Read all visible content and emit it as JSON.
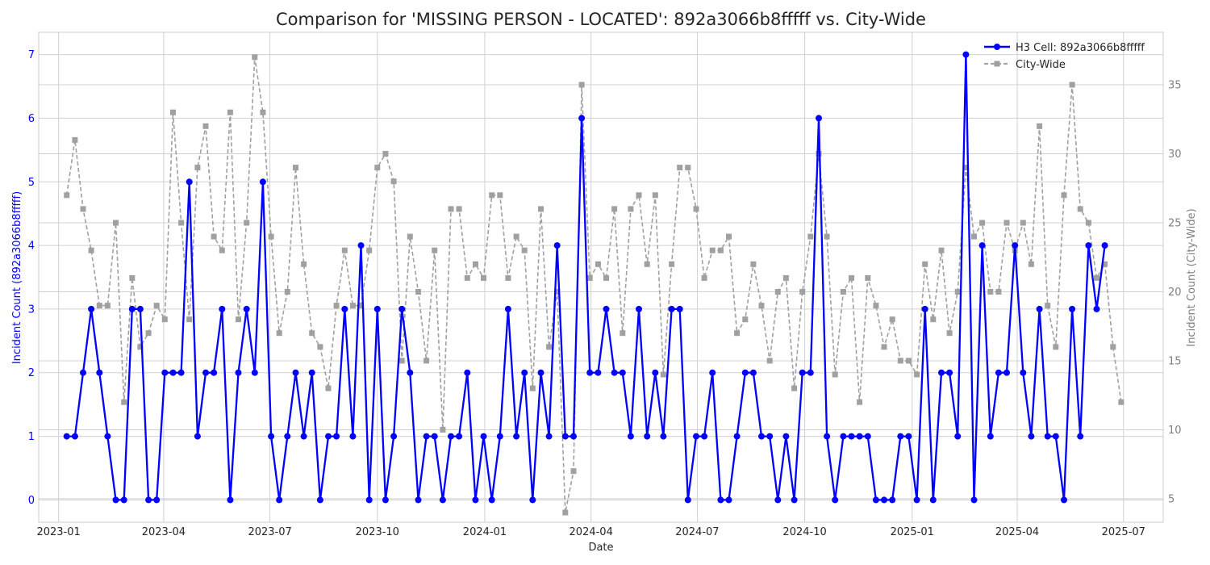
{
  "colors": {
    "cell": "#0000ff",
    "city": "#a0a0a0",
    "grid": "#d0d0d0",
    "frame": "#cccccc",
    "text": "#262626",
    "right_axis_text": "#808080"
  },
  "chart_data": {
    "type": "line",
    "title": "Comparison for 'MISSING PERSON - LOCATED': 892a3066b8fffff vs. City-Wide",
    "xlabel": "Date",
    "ylabel_left": "Incident Count (892a3066b8fffff)",
    "ylabel_right": "Incident Count (City-Wide)",
    "x_start": "2023-01-08",
    "x_interval": "weekly",
    "xlim": [
      "2022-12-15",
      "2025-08-04"
    ],
    "ylim_left": [
      -0.35,
      7.35
    ],
    "ylim_right": [
      3.3,
      38.8
    ],
    "grid": true,
    "legend_position": "top-right",
    "x_ticks": [
      "2023-01",
      "2023-04",
      "2023-07",
      "2023-10",
      "2024-01",
      "2024-04",
      "2024-07",
      "2024-10",
      "2025-01",
      "2025-04",
      "2025-07"
    ],
    "y_ticks_left": [
      0,
      1,
      2,
      3,
      4,
      5,
      6,
      7
    ],
    "y_ticks_right": [
      5,
      10,
      15,
      20,
      25,
      30,
      35
    ],
    "series": [
      {
        "name": "H3 Cell: 892a3066b8fffff",
        "axis": "left",
        "style": "solid-circle",
        "values": [
          1,
          1,
          2,
          3,
          2,
          1,
          0,
          0,
          3,
          3,
          0,
          0,
          2,
          2,
          2,
          5,
          1,
          2,
          2,
          3,
          0,
          2,
          3,
          2,
          5,
          1,
          0,
          1,
          2,
          1,
          2,
          0,
          1,
          1,
          3,
          1,
          4,
          0,
          3,
          0,
          1,
          3,
          2,
          0,
          1,
          1,
          0,
          1,
          1,
          2,
          0,
          1,
          0,
          1,
          3,
          1,
          2,
          0,
          2,
          1,
          4,
          1,
          1,
          6,
          2,
          2,
          3,
          2,
          2,
          1,
          3,
          1,
          2,
          1,
          3,
          3,
          0,
          1,
          1,
          2,
          0,
          0,
          1,
          2,
          2,
          1,
          1,
          0,
          1,
          0,
          2,
          2,
          6,
          1,
          0,
          1,
          1,
          1,
          1,
          0,
          0,
          0,
          1,
          1,
          0,
          3,
          0,
          2,
          2,
          1,
          7,
          0,
          4,
          1,
          2,
          2,
          4,
          2,
          1,
          3,
          1,
          1,
          0,
          3,
          1,
          4,
          3,
          4
        ]
      },
      {
        "name": "City-Wide",
        "axis": "right",
        "style": "dashed-square",
        "values": [
          27,
          31,
          26,
          23,
          19,
          19,
          25,
          12,
          21,
          16,
          17,
          19,
          18,
          33,
          25,
          18,
          29,
          32,
          24,
          23,
          33,
          18,
          25,
          37,
          33,
          24,
          17,
          20,
          29,
          22,
          17,
          16,
          13,
          19,
          23,
          19,
          19,
          23,
          29,
          30,
          28,
          15,
          24,
          20,
          15,
          23,
          10,
          26,
          26,
          21,
          22,
          21,
          27,
          27,
          21,
          24,
          23,
          13,
          26,
          16,
          20,
          4,
          7,
          35,
          21,
          22,
          21,
          26,
          17,
          26,
          27,
          22,
          27,
          14,
          22,
          29,
          29,
          26,
          21,
          23,
          23,
          24,
          17,
          18,
          22,
          19,
          15,
          20,
          21,
          13,
          20,
          24,
          30,
          24,
          14,
          20,
          21,
          12,
          21,
          19,
          16,
          18,
          15,
          15,
          14,
          22,
          18,
          23,
          17,
          20,
          29,
          24,
          25,
          20,
          20,
          25,
          23,
          25,
          22,
          32,
          19,
          16,
          27,
          35,
          26,
          25,
          21,
          22,
          16,
          12
        ]
      }
    ]
  }
}
